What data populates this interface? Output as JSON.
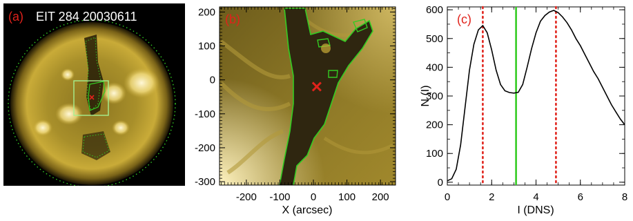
{
  "panel_a": {
    "tag": "(a)",
    "title": "EIT 284 20030611"
  },
  "panel_b": {
    "tag": "(b)",
    "xlabel": "X (arcsec)",
    "x_ticks": [
      "-200",
      "-100",
      "0",
      "100",
      "200"
    ],
    "y_ticks": [
      "200",
      "100",
      "0",
      "-100",
      "-200",
      "-300"
    ],
    "xlim": [
      -280,
      245
    ],
    "ylim": [
      -310,
      215
    ],
    "marker_x": 10,
    "marker_y": -20
  },
  "chart_data": {
    "type": "line",
    "tag": "(c)",
    "xlabel": "I (DNS)",
    "ylabel": "N (I)",
    "xlim": [
      0,
      8
    ],
    "ylim": [
      -10,
      610
    ],
    "x_ticks": [
      "0",
      "2",
      "4",
      "6",
      "8"
    ],
    "y_ticks": [
      "0",
      "100",
      "200",
      "300",
      "400",
      "500",
      "600"
    ],
    "series": [
      {
        "x": [
          0.0,
          0.2,
          0.4,
          0.6,
          0.8,
          1.0,
          1.2,
          1.4,
          1.6,
          1.8,
          2.0,
          2.2,
          2.4,
          2.6,
          2.8,
          3.0,
          3.2,
          3.4,
          3.6,
          3.8,
          4.0,
          4.2,
          4.4,
          4.6,
          4.8,
          5.0,
          5.2,
          5.4,
          5.6,
          5.8,
          6.0,
          6.2,
          6.4,
          6.6,
          6.8,
          7.0,
          7.2,
          7.4,
          7.6,
          7.8,
          8.0
        ],
        "y": [
          5,
          12,
          45,
          130,
          260,
          390,
          480,
          530,
          545,
          520,
          460,
          390,
          340,
          318,
          312,
          310,
          313,
          340,
          400,
          465,
          520,
          560,
          580,
          592,
          598,
          590,
          575,
          555,
          530,
          500,
          475,
          445,
          415,
          385,
          360,
          330,
          300,
          270,
          245,
          220,
          200
        ]
      }
    ],
    "vlines": [
      {
        "x": 1.6,
        "style": "dotted",
        "color": "#e0221b"
      },
      {
        "x": 3.1,
        "style": "solid",
        "color": "#33cc22"
      },
      {
        "x": 4.9,
        "style": "dotted",
        "color": "#e0221b"
      }
    ]
  }
}
